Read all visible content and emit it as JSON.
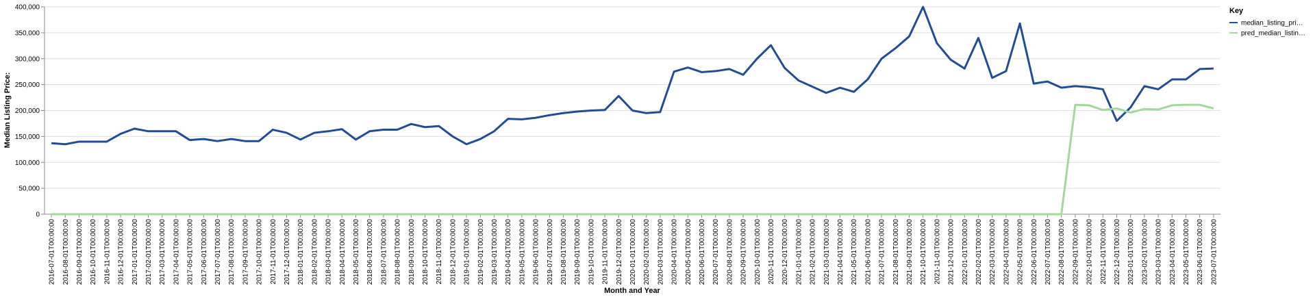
{
  "chart_data": {
    "type": "line",
    "x_label": "Month and Year",
    "y_label": "Median Listing Price:",
    "legend_title": "Key",
    "legend": "top-right",
    "grid": true,
    "categories": [
      "2016-07-01T00:00:00",
      "2016-08-01T00:00:00",
      "2016-09-01T00:00:00",
      "2016-10-01T00:00:00",
      "2016-11-01T00:00:00",
      "2016-12-01T00:00:00",
      "2017-01-01T00:00:00",
      "2017-02-01T00:00:00",
      "2017-03-01T00:00:00",
      "2017-04-01T00:00:00",
      "2017-05-01T00:00:00",
      "2017-06-01T00:00:00",
      "2017-07-01T00:00:00",
      "2017-08-01T00:00:00",
      "2017-09-01T00:00:00",
      "2017-10-01T00:00:00",
      "2017-11-01T00:00:00",
      "2017-12-01T00:00:00",
      "2018-01-01T00:00:00",
      "2018-02-01T00:00:00",
      "2018-03-01T00:00:00",
      "2018-04-01T00:00:00",
      "2018-05-01T00:00:00",
      "2018-06-01T00:00:00",
      "2018-07-01T00:00:00",
      "2018-08-01T00:00:00",
      "2018-09-01T00:00:00",
      "2018-10-01T00:00:00",
      "2018-11-01T00:00:00",
      "2018-12-01T00:00:00",
      "2019-01-01T00:00:00",
      "2019-02-01T00:00:00",
      "2019-03-01T00:00:00",
      "2019-04-01T00:00:00",
      "2019-05-01T00:00:00",
      "2019-06-01T00:00:00",
      "2019-07-01T00:00:00",
      "2019-08-01T00:00:00",
      "2019-09-01T00:00:00",
      "2019-10-01T00:00:00",
      "2019-11-01T00:00:00",
      "2019-12-01T00:00:00",
      "2020-01-01T00:00:00",
      "2020-02-01T00:00:00",
      "2020-03-01T00:00:00",
      "2020-04-01T00:00:00",
      "2020-05-01T00:00:00",
      "2020-06-01T00:00:00",
      "2020-07-01T00:00:00",
      "2020-08-01T00:00:00",
      "2020-09-01T00:00:00",
      "2020-10-01T00:00:00",
      "2020-11-01T00:00:00",
      "2020-12-01T00:00:00",
      "2021-01-01T00:00:00",
      "2021-02-01T00:00:00",
      "2021-03-01T00:00:00",
      "2021-04-01T00:00:00",
      "2021-05-01T00:00:00",
      "2021-06-01T00:00:00",
      "2021-07-01T00:00:00",
      "2021-08-01T00:00:00",
      "2021-09-01T00:00:00",
      "2021-10-01T00:00:00",
      "2021-11-01T00:00:00",
      "2021-12-01T00:00:00",
      "2022-01-01T00:00:00",
      "2022-02-01T00:00:00",
      "2022-03-01T00:00:00",
      "2022-04-01T00:00:00",
      "2022-05-01T00:00:00",
      "2022-06-01T00:00:00",
      "2022-07-01T00:00:00",
      "2022-08-01T00:00:00",
      "2022-09-01T00:00:00",
      "2022-10-01T00:00:00",
      "2022-11-01T00:00:00",
      "2022-12-01T00:00:00",
      "2023-01-01T00:00:00",
      "2023-02-01T00:00:00",
      "2023-03-01T00:00:00",
      "2023-04-01T00:00:00",
      "2023-05-01T00:00:00",
      "2023-06-01T00:00:00",
      "2023-07-01T00:00:00"
    ],
    "series": [
      {
        "name": "median_listing_pri…",
        "color": "#1f4e96",
        "values": [
          137000,
          135000,
          140000,
          140000,
          140000,
          155000,
          165000,
          160000,
          160000,
          160000,
          143000,
          145000,
          141000,
          145000,
          141000,
          141000,
          163000,
          157000,
          144000,
          157000,
          160000,
          164000,
          144000,
          160000,
          163000,
          163000,
          174000,
          168000,
          170000,
          150000,
          135000,
          145000,
          160000,
          184000,
          183000,
          186000,
          191000,
          195000,
          198000,
          200000,
          201000,
          228000,
          200000,
          195000,
          197000,
          275000,
          283000,
          274000,
          276000,
          280000,
          269000,
          300000,
          326000,
          282000,
          258000,
          246000,
          234000,
          244000,
          236000,
          260000,
          300000,
          320000,
          343000,
          400000,
          330000,
          298000,
          281000,
          340000,
          263000,
          276000,
          368000,
          252000,
          256000,
          244000,
          247000,
          245000,
          241000,
          180000,
          206000,
          247000,
          241000,
          260000,
          260000,
          280000,
          281000
        ]
      },
      {
        "name": "pred_median_listin…",
        "color": "#a1d99b",
        "values": [
          0,
          0,
          0,
          0,
          0,
          0,
          0,
          0,
          0,
          0,
          0,
          0,
          0,
          0,
          0,
          0,
          0,
          0,
          0,
          0,
          0,
          0,
          0,
          0,
          0,
          0,
          0,
          0,
          0,
          0,
          0,
          0,
          0,
          0,
          0,
          0,
          0,
          0,
          0,
          0,
          0,
          0,
          0,
          0,
          0,
          0,
          0,
          0,
          0,
          0,
          0,
          0,
          0,
          0,
          0,
          0,
          0,
          0,
          0,
          0,
          0,
          0,
          0,
          0,
          0,
          0,
          0,
          0,
          0,
          0,
          0,
          0,
          0,
          0,
          211000,
          210000,
          201000,
          204000,
          196000,
          203000,
          202000,
          210000,
          211000,
          211000,
          204000
        ]
      }
    ],
    "ylim": [
      0,
      400000
    ],
    "yticks": [
      0,
      {
        "value": 50000,
        "label": "50,000"
      },
      {
        "value": 100000,
        "label": "100,000"
      },
      {
        "value": 150000,
        "label": "150,000"
      },
      {
        "value": 200000,
        "label": "200,000"
      },
      {
        "value": 250000,
        "label": "250,000"
      },
      {
        "value": 300000,
        "label": "300,000"
      },
      {
        "value": 350000,
        "label": "350,000"
      },
      {
        "value": 400000,
        "label": "400,000"
      }
    ]
  }
}
